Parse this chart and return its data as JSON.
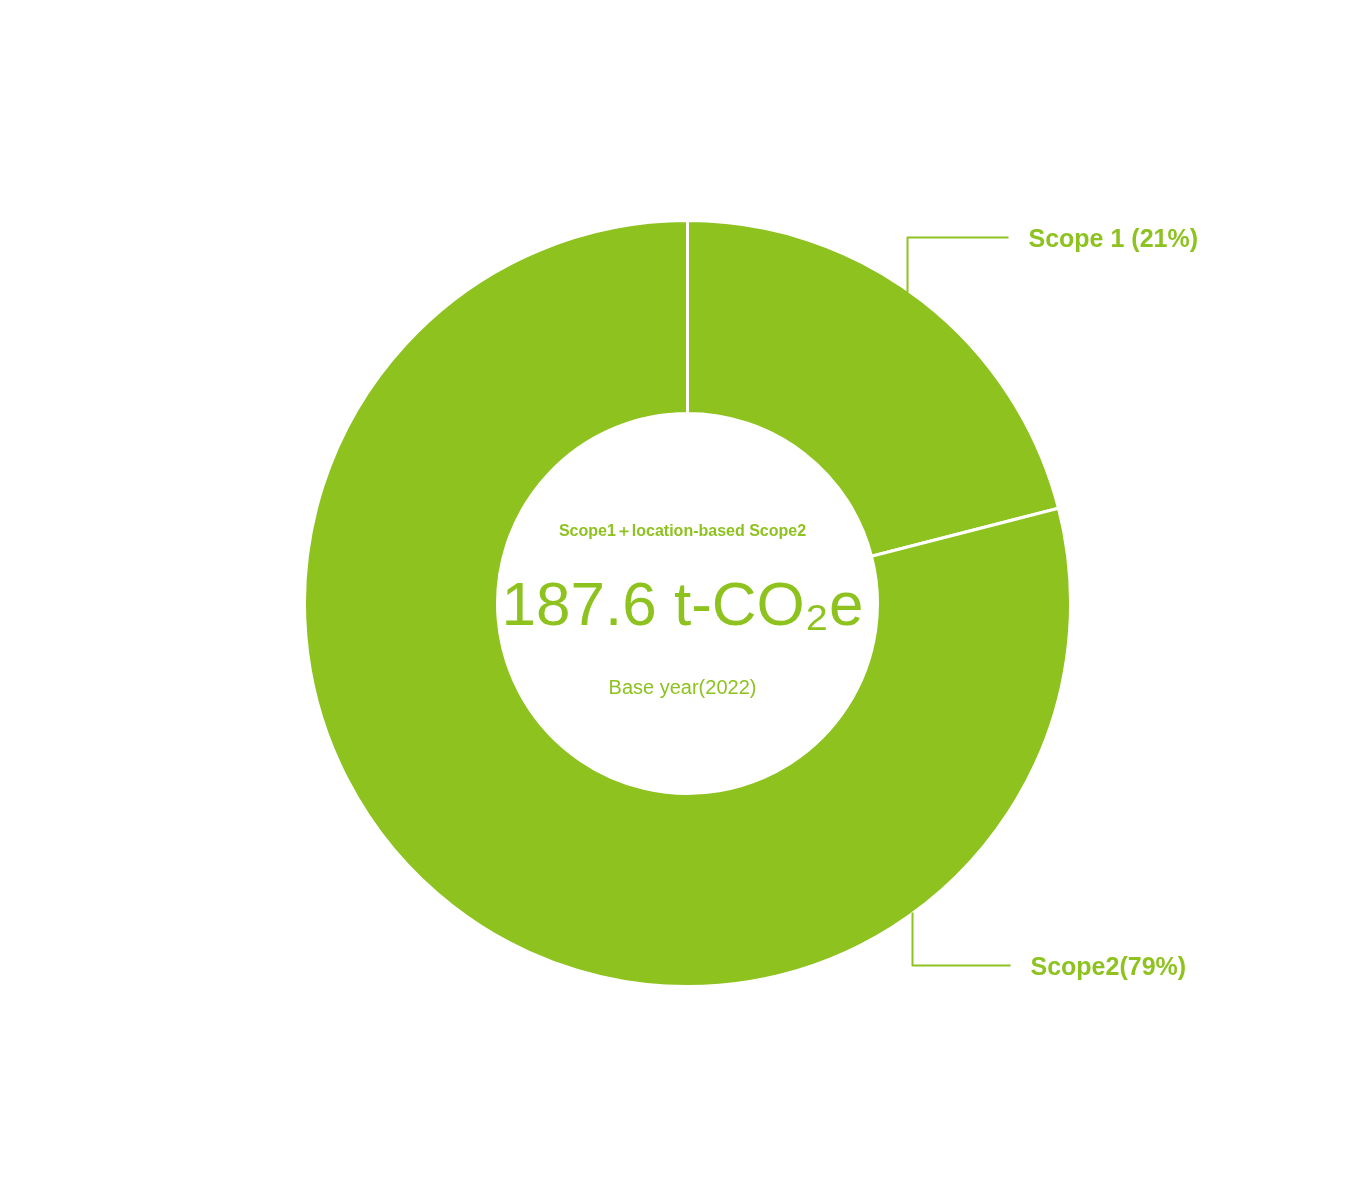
{
  "chart_data": {
    "type": "donut",
    "categories": [
      "Scope 1 (21%)",
      "Scope2(79%)"
    ],
    "values": [
      21,
      79
    ],
    "colors": [
      "#8dc21f",
      "#8dc21f"
    ],
    "annotations": [
      "Scope1＋location-based Scope2",
      "187.6 t-CO₂e",
      "Base year(2022)"
    ]
  }
}
